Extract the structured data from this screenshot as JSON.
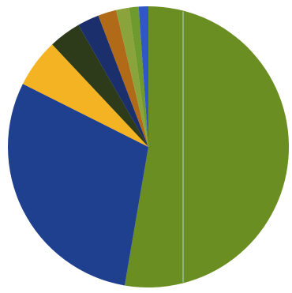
{
  "chart_data": {
    "type": "pie",
    "start_angle_deg": 0,
    "direction": "clockwise",
    "slices": [
      {
        "value": 52.7,
        "color": "#6b8e23"
      },
      {
        "value": 29.7,
        "color": "#1f3f8f"
      },
      {
        "value": 5.6,
        "color": "#f4b323"
      },
      {
        "value": 3.7,
        "color": "#2e3b1a"
      },
      {
        "value": 2.5,
        "color": "#1a2f6b"
      },
      {
        "value": 2.1,
        "color": "#b06a18"
      },
      {
        "value": 1.5,
        "color": "#8aa33a"
      },
      {
        "value": 1.1,
        "color": "#6f9a2d"
      },
      {
        "value": 1.1,
        "color": "#2f57c5"
      }
    ],
    "divider_line": true
  }
}
